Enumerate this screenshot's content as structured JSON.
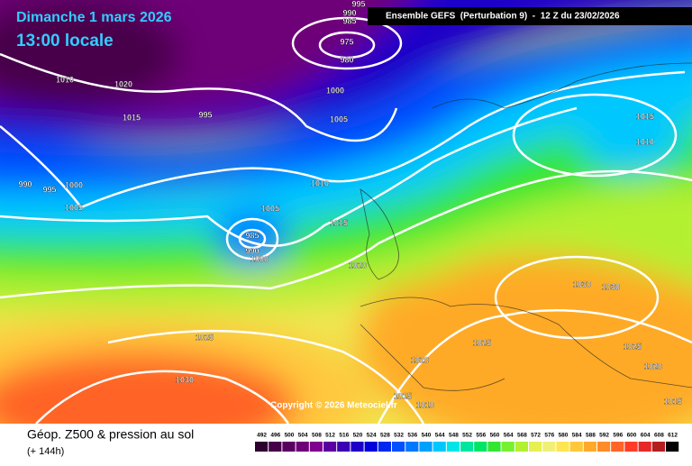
{
  "header": {
    "date": "Dimanche 1 mars 2026",
    "time": "13:00 locale",
    "run": "Ensemble GEFS  (Perturbation 9)  -  12 Z du 23/02/2026"
  },
  "isobar_labels": [
    995,
    990,
    985,
    975,
    980,
    1010,
    1020,
    1015,
    995,
    1000,
    1005,
    990,
    995,
    1000,
    1005,
    1005,
    985,
    990,
    1000,
    1010,
    1015,
    1020,
    1025,
    1030,
    1025,
    1020,
    1015,
    1010,
    1030,
    1030,
    1025,
    1020,
    1015,
    1015,
    1010
  ],
  "copyright": "Copyright © 2026 Meteociel.fr",
  "footer": {
    "title": "Géop. Z500 & pression au sol",
    "lead": "(+ 144h)"
  },
  "scale": {
    "labels": [
      492,
      496,
      500,
      504,
      508,
      512,
      516,
      520,
      524,
      528,
      532,
      536,
      540,
      544,
      548,
      552,
      556,
      560,
      564,
      568,
      572,
      576,
      580,
      584,
      588,
      592,
      596,
      600,
      604,
      608,
      612
    ],
    "colors": [
      "#2e0030",
      "#46004a",
      "#5a0060",
      "#6e0078",
      "#800090",
      "#5a00a0",
      "#3c00b4",
      "#1e00c8",
      "#0000dc",
      "#0028f0",
      "#0050ff",
      "#0078ff",
      "#00a0ff",
      "#00c8ff",
      "#00e6e6",
      "#00e6a0",
      "#00e664",
      "#32e632",
      "#78f032",
      "#b4f032",
      "#e6f050",
      "#f0f078",
      "#ffe650",
      "#ffc83c",
      "#ffaa28",
      "#ff8c28",
      "#ff6428",
      "#ff3c28",
      "#e62828",
      "#b41e1e",
      "#000000"
    ]
  }
}
